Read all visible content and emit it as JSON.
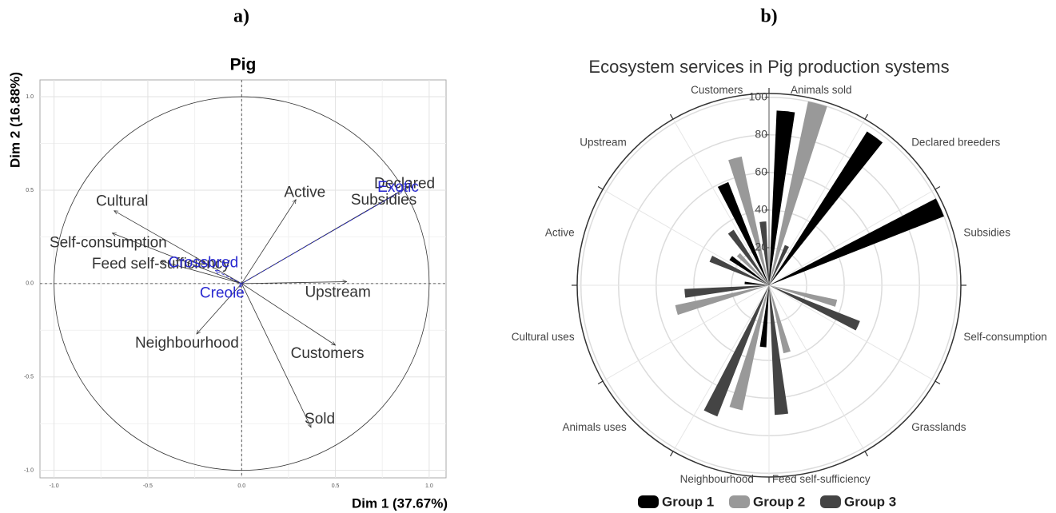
{
  "chart_data": [
    {
      "type": "biplot",
      "panel_label": "a)",
      "title": "Pig",
      "xlabel": "Dim 1 (37.67%)",
      "ylabel": "Dim 2 (16.88%)",
      "xlim": [
        -1.075,
        1.09
      ],
      "ylim": [
        -1.04,
        1.09
      ],
      "xticks": [
        {
          "value": -1.0,
          "label": "-1.0"
        },
        {
          "value": -0.5,
          "label": "-0.5"
        },
        {
          "value": 0,
          "label": "0.0"
        },
        {
          "value": 0.5,
          "label": "0.5"
        },
        {
          "value": 1.0,
          "label": "1.0"
        }
      ],
      "yticks": [
        {
          "value": -1.0,
          "label": "-1.0"
        },
        {
          "value": -0.5,
          "label": "-0.5"
        },
        {
          "value": 0,
          "label": "0.0"
        },
        {
          "value": 0.5,
          "label": "0.5"
        },
        {
          "value": 1.0,
          "label": "1.0"
        }
      ],
      "grid": true,
      "vectors": {
        "color": "#333333",
        "labels": [
          "Cultural",
          "Self-consumption",
          "Feed self-sufficiency",
          "Active",
          "Declared",
          "Subsidies",
          "Upstream",
          "Customers",
          "Sold",
          "Neighbourhood"
        ],
        "x": [
          -0.68,
          -0.69,
          -0.43,
          0.29,
          0.89,
          0.86,
          0.56,
          0.5,
          0.37,
          -0.24
        ],
        "y": [
          0.39,
          0.27,
          0.12,
          0.45,
          0.52,
          0.5,
          0.01,
          -0.33,
          -0.77,
          -0.27
        ]
      },
      "supplementary": {
        "color": "#2a2ad0",
        "labels": [
          "Exotic",
          "Crossbred",
          "Creole"
        ],
        "x": [
          0.86,
          -0.14,
          -0.01
        ],
        "y": [
          0.5,
          0.07,
          -0.02
        ]
      }
    },
    {
      "type": "polar_bar",
      "panel_label": "b)",
      "title": "Ecosystem services in Pig production systems",
      "categories": [
        "Animals sold",
        "Declared breeders",
        "Subsidies",
        "Self-consumption",
        "Grasslands",
        "Feed self-sufficiency",
        "Neighbourhood",
        "Animals uses",
        "Cultural uses",
        "Active",
        "Upstream",
        "Customers"
      ],
      "series": [
        {
          "name": "Group 1",
          "color": "#000000",
          "values": [
            93,
            97,
            100,
            0,
            0,
            0,
            33,
            0,
            0,
            13,
            25,
            59
          ]
        },
        {
          "name": "Group 2",
          "color": "#999999",
          "values": [
            100,
            0,
            0,
            37,
            0,
            37,
            68,
            0,
            51,
            0,
            23,
            70
          ]
        },
        {
          "name": "Group 3",
          "color": "#444444",
          "values": [
            23,
            0,
            0,
            52,
            0,
            69,
            75,
            0,
            45,
            34,
            35,
            34
          ]
        }
      ],
      "rlim": [
        0,
        102
      ],
      "rticks": [
        20,
        40,
        60,
        80,
        100
      ],
      "grid": true,
      "legend": "bottom"
    }
  ]
}
